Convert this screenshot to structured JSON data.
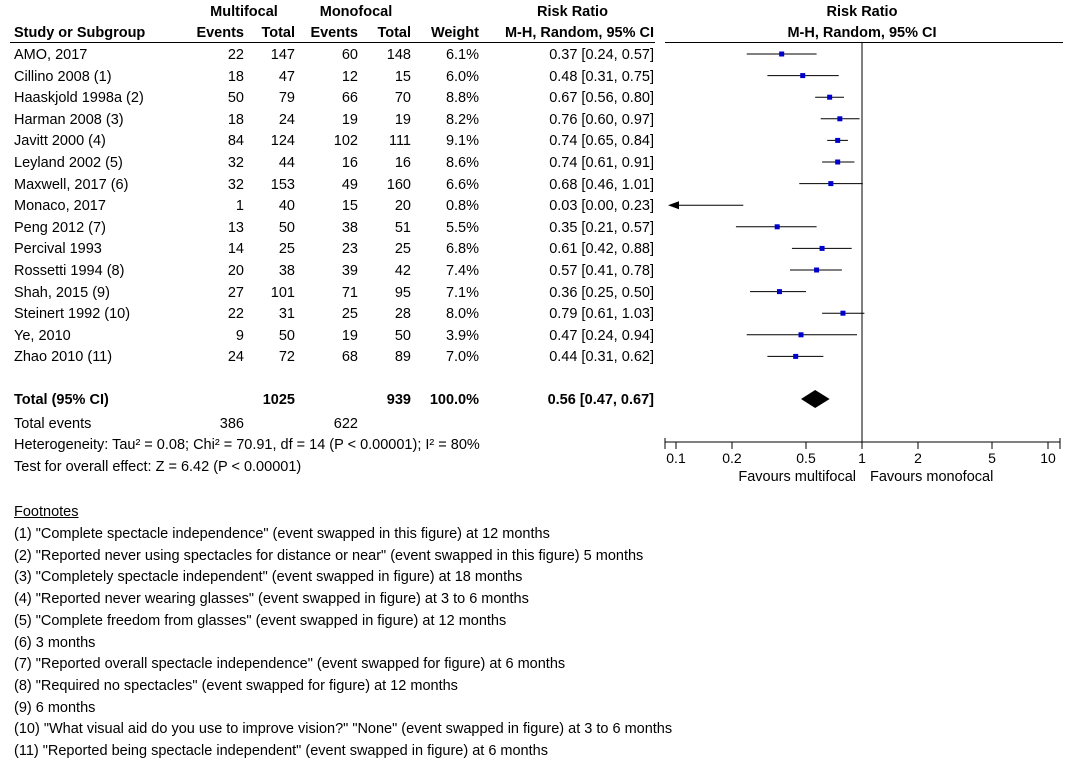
{
  "headers": {
    "group1": "Multifocal",
    "group2": "Monofocal",
    "rr_title": "Risk Ratio",
    "rr_method": "M-H, Random, 95% CI",
    "plot_title": "Risk Ratio",
    "plot_method": "M-H, Random, 95% CI",
    "study": "Study or Subgroup",
    "events1": "Events",
    "total1": "Total",
    "events2": "Events",
    "total2": "Total",
    "weight": "Weight"
  },
  "total": {
    "label": "Total (95% CI)",
    "total1": "1025",
    "total2": "939",
    "weight": "100.0%",
    "ci_text": "0.56 [0.47, 0.67]",
    "events_label": "Total events",
    "events1": "386",
    "events2": "622",
    "heterogeneity": "Heterogeneity: Tau² = 0.08; Chi² = 70.91, df = 14 (P < 0.00001); I² = 80%",
    "overall": "Test for overall effect: Z = 6.42 (P < 0.00001)"
  },
  "axis": {
    "favours_left": "Favours multifocal",
    "favours_right": "Favours monofocal"
  },
  "footnotes_title": "Footnotes",
  "footnotes": [
    "(1) \"Complete spectacle independence\" (event swapped in this figure) at 12 months",
    "(2) \"Reported never using spectacles for distance or near\" (event swapped in this figure) 5 months",
    "(3) \"Completely spectacle independent\" (event swapped in figure) at 18 months",
    "(4) \"Reported never wearing glasses\" (event swapped in figure) at 3 to 6 months",
    "(5) \"Complete freedom from glasses\" (event swapped in figure) at 12 months",
    "(6) 3 months",
    "(7) \"Reported overall spectacle independence\" (event swapped for figure) at 6 months",
    "(8) \"Required no spectacles\" (event swapped for figure) at 12 months",
    "(9) 6 months",
    "(10) \"What visual aid do you use to improve vision?\" \"None\" (event swapped in figure) at 3 to 6 months",
    "(11) \"Reported being spectacle independent\" (event swapped in figure) at 6 months"
  ],
  "colors": {
    "point": "#0000cc",
    "line": "#000000"
  },
  "chart_data": {
    "type": "forest",
    "x_scale": "log",
    "xlim": [
      0.1,
      10
    ],
    "ticks": [
      0.1,
      0.2,
      0.5,
      1,
      2,
      5,
      10
    ],
    "tick_labels": [
      "0.1",
      "0.2",
      "0.5",
      "1",
      "2",
      "5",
      "10"
    ],
    "reference_line": 1,
    "studies": [
      {
        "study": "AMO, 2017",
        "events1": "22",
        "total1": "147",
        "events2": "60",
        "total2": "148",
        "weight": "6.1%",
        "ci_text": "0.37 [0.24, 0.57]",
        "rr": 0.37,
        "lo": 0.24,
        "hi": 0.57
      },
      {
        "study": "Cillino 2008 (1)",
        "events1": "18",
        "total1": "47",
        "events2": "12",
        "total2": "15",
        "weight": "6.0%",
        "ci_text": "0.48 [0.31, 0.75]",
        "rr": 0.48,
        "lo": 0.31,
        "hi": 0.75
      },
      {
        "study": "Haaskjold 1998a (2)",
        "events1": "50",
        "total1": "79",
        "events2": "66",
        "total2": "70",
        "weight": "8.8%",
        "ci_text": "0.67 [0.56, 0.80]",
        "rr": 0.67,
        "lo": 0.56,
        "hi": 0.8
      },
      {
        "study": "Harman 2008 (3)",
        "events1": "18",
        "total1": "24",
        "events2": "19",
        "total2": "19",
        "weight": "8.2%",
        "ci_text": "0.76 [0.60, 0.97]",
        "rr": 0.76,
        "lo": 0.6,
        "hi": 0.97
      },
      {
        "study": "Javitt 2000 (4)",
        "events1": "84",
        "total1": "124",
        "events2": "102",
        "total2": "111",
        "weight": "9.1%",
        "ci_text": "0.74 [0.65, 0.84]",
        "rr": 0.74,
        "lo": 0.65,
        "hi": 0.84
      },
      {
        "study": "Leyland 2002 (5)",
        "events1": "32",
        "total1": "44",
        "events2": "16",
        "total2": "16",
        "weight": "8.6%",
        "ci_text": "0.74 [0.61, 0.91]",
        "rr": 0.74,
        "lo": 0.61,
        "hi": 0.91
      },
      {
        "study": "Maxwell, 2017 (6)",
        "events1": "32",
        "total1": "153",
        "events2": "49",
        "total2": "160",
        "weight": "6.6%",
        "ci_text": "0.68 [0.46, 1.01]",
        "rr": 0.68,
        "lo": 0.46,
        "hi": 1.01
      },
      {
        "study": "Monaco, 2017",
        "events1": "1",
        "total1": "40",
        "events2": "15",
        "total2": "20",
        "weight": "0.8%",
        "ci_text": "0.03 [0.00, 0.23]",
        "rr": 0.03,
        "lo": 0.0,
        "hi": 0.23
      },
      {
        "study": "Peng 2012 (7)",
        "events1": "13",
        "total1": "50",
        "events2": "38",
        "total2": "51",
        "weight": "5.5%",
        "ci_text": "0.35 [0.21, 0.57]",
        "rr": 0.35,
        "lo": 0.21,
        "hi": 0.57
      },
      {
        "study": "Percival 1993",
        "events1": "14",
        "total1": "25",
        "events2": "23",
        "total2": "25",
        "weight": "6.8%",
        "ci_text": "0.61 [0.42, 0.88]",
        "rr": 0.61,
        "lo": 0.42,
        "hi": 0.88
      },
      {
        "study": "Rossetti 1994 (8)",
        "events1": "20",
        "total1": "38",
        "events2": "39",
        "total2": "42",
        "weight": "7.4%",
        "ci_text": "0.57 [0.41, 0.78]",
        "rr": 0.57,
        "lo": 0.41,
        "hi": 0.78
      },
      {
        "study": "Shah, 2015 (9)",
        "events1": "27",
        "total1": "101",
        "events2": "71",
        "total2": "95",
        "weight": "7.1%",
        "ci_text": "0.36 [0.25, 0.50]",
        "rr": 0.36,
        "lo": 0.25,
        "hi": 0.5
      },
      {
        "study": "Steinert 1992 (10)",
        "events1": "22",
        "total1": "31",
        "events2": "25",
        "total2": "28",
        "weight": "8.0%",
        "ci_text": "0.79 [0.61, 1.03]",
        "rr": 0.79,
        "lo": 0.61,
        "hi": 1.03
      },
      {
        "study": "Ye, 2010",
        "events1": "9",
        "total1": "50",
        "events2": "19",
        "total2": "50",
        "weight": "3.9%",
        "ci_text": "0.47 [0.24, 0.94]",
        "rr": 0.47,
        "lo": 0.24,
        "hi": 0.94
      },
      {
        "study": "Zhao 2010 (11)",
        "events1": "24",
        "total1": "72",
        "events2": "68",
        "total2": "89",
        "weight": "7.0%",
        "ci_text": "0.44 [0.31, 0.62]",
        "rr": 0.44,
        "lo": 0.31,
        "hi": 0.62
      }
    ],
    "pooled": {
      "rr": 0.56,
      "lo": 0.47,
      "hi": 0.67
    }
  }
}
